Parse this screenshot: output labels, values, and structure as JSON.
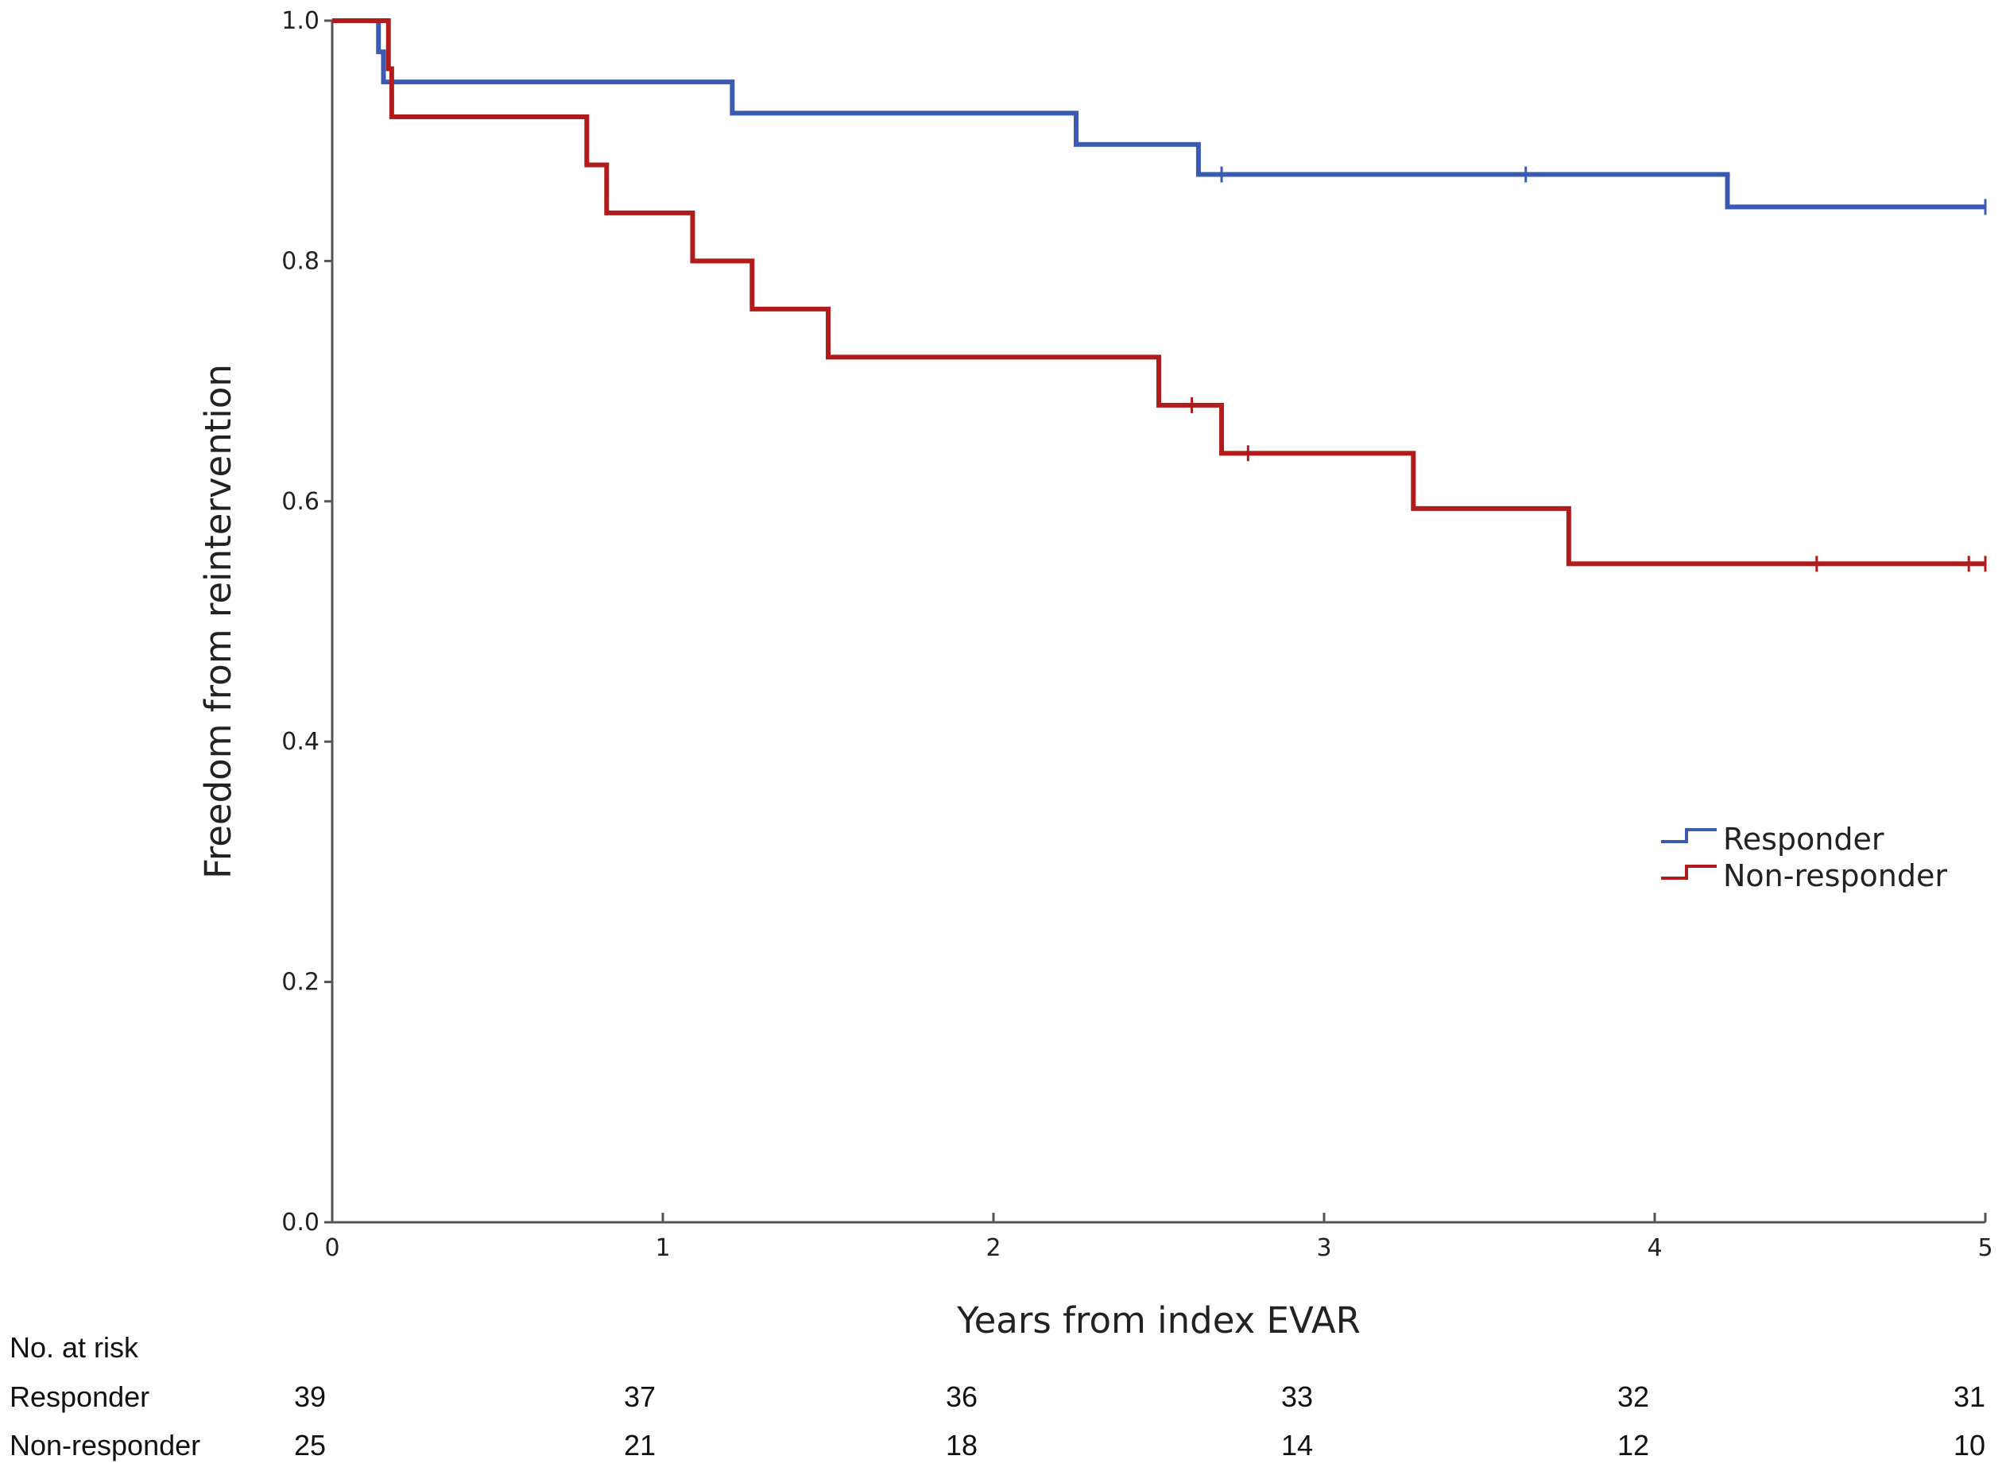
{
  "chart_data": {
    "type": "line",
    "subtype": "kaplan-meier",
    "xlabel": "Years from index EVAR",
    "ylabel": "Freedom from reintervention",
    "xlim": [
      0,
      5
    ],
    "ylim": [
      0,
      1
    ],
    "xticks": [
      0,
      1,
      2,
      3,
      4,
      5
    ],
    "xtick_labels": [
      "0",
      "1",
      "2",
      "3",
      "4",
      "5"
    ],
    "yticks": [
      0,
      0.2,
      0.4,
      0.6,
      0.8,
      1.0
    ],
    "ytick_labels": [
      "0.0",
      "0.2",
      "0.4",
      "0.6",
      "0.8",
      "1.0"
    ],
    "legend_position": "right-middle",
    "series": [
      {
        "name": "Responder",
        "color": "#3a5bb0",
        "steps": [
          [
            0.0,
            1.0
          ],
          [
            0.14,
            0.974
          ],
          [
            0.155,
            0.949
          ],
          [
            1.21,
            0.923
          ],
          [
            2.25,
            0.897
          ],
          [
            2.62,
            0.872
          ],
          [
            4.22,
            0.845
          ],
          [
            5.0,
            0.845
          ]
        ],
        "censored": [
          [
            2.69,
            0.872
          ],
          [
            3.61,
            0.872
          ],
          [
            5.0,
            0.845
          ]
        ]
      },
      {
        "name": "Non-responder",
        "color": "#b01c1c",
        "steps": [
          [
            0.0,
            1.0
          ],
          [
            0.17,
            0.96
          ],
          [
            0.18,
            0.92
          ],
          [
            0.77,
            0.88
          ],
          [
            0.83,
            0.84
          ],
          [
            1.09,
            0.8
          ],
          [
            1.27,
            0.76
          ],
          [
            1.5,
            0.72
          ],
          [
            2.5,
            0.68
          ],
          [
            2.69,
            0.64
          ],
          [
            3.27,
            0.594
          ],
          [
            3.74,
            0.548
          ],
          [
            5.0,
            0.548
          ]
        ],
        "censored": [
          [
            2.6,
            0.68
          ],
          [
            2.77,
            0.64
          ],
          [
            4.49,
            0.548
          ],
          [
            4.95,
            0.548
          ],
          [
            5.0,
            0.548
          ]
        ]
      }
    ],
    "risk_table": {
      "header": "No. at risk",
      "rows": [
        {
          "label": "Responder",
          "values": [
            "39",
            "37",
            "36",
            "33",
            "32",
            "31"
          ]
        },
        {
          "label": "Non-responder",
          "values": [
            "25",
            "21",
            "18",
            "14",
            "12",
            "10"
          ]
        }
      ]
    }
  }
}
